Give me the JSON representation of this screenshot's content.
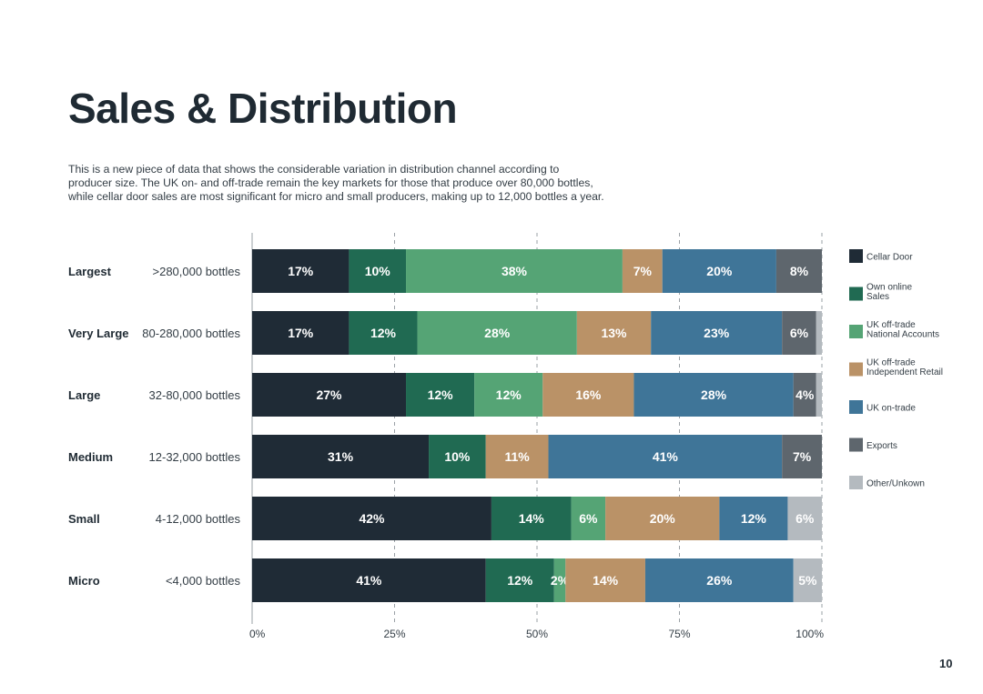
{
  "page": {
    "title": "Sales & Distribution",
    "intro_lines": [
      "This is a new piece of data that shows the considerable variation in distribution channel according to",
      "producer size. The UK on- and off-trade remain the key markets for those that produce over 80,000 bottles,",
      "while cellar door sales are most significant for micro and small producers, making up to 12,000 bottles a year."
    ],
    "page_number": "10"
  },
  "chart_data": {
    "type": "bar",
    "orientation": "horizontal",
    "stacked": true,
    "percent_stacked": true,
    "x_ticks": [
      "0%",
      "25%",
      "50%",
      "75%",
      "100%"
    ],
    "xlim": [
      0,
      100
    ],
    "grid": "vertical dashed at 25% intervals",
    "legend_position": "right",
    "categories": [
      {
        "name": "Largest",
        "range": ">280,000 bottles"
      },
      {
        "name": "Very Large",
        "range": "80-280,000 bottles"
      },
      {
        "name": "Large",
        "range": "32-80,000 bottles"
      },
      {
        "name": "Medium",
        "range": "12-32,000 bottles"
      },
      {
        "name": "Small",
        "range": "4-12,000 bottles"
      },
      {
        "name": "Micro",
        "range": "<4,000 bottles"
      }
    ],
    "series": [
      {
        "name": "Cellar Door",
        "legend_lines": [
          "Cellar Door"
        ],
        "color": "#1f2b36",
        "values": [
          17,
          17,
          27,
          31,
          42,
          41
        ]
      },
      {
        "name": "Own online Sales",
        "legend_lines": [
          "Own online",
          "Sales"
        ],
        "color": "#206a52",
        "values": [
          10,
          12,
          12,
          10,
          14,
          12
        ]
      },
      {
        "name": "UK off-trade National Accounts",
        "legend_lines": [
          "UK off-trade",
          "National Accounts"
        ],
        "color": "#55a475",
        "values": [
          38,
          28,
          12,
          0,
          6,
          2
        ]
      },
      {
        "name": "UK off-trade Independent Retail",
        "legend_lines": [
          "UK off-trade",
          "Independent Retail"
        ],
        "color": "#ba9267",
        "values": [
          7,
          13,
          16,
          11,
          20,
          14
        ]
      },
      {
        "name": "UK on-trade",
        "legend_lines": [
          "UK on-trade"
        ],
        "color": "#3f7598",
        "values": [
          20,
          23,
          28,
          41,
          12,
          26
        ]
      },
      {
        "name": "Exports",
        "legend_lines": [
          "Exports"
        ],
        "color": "#5e666d",
        "values": [
          8,
          6,
          4,
          7,
          0,
          0
        ]
      },
      {
        "name": "Other/Unkown",
        "legend_lines": [
          "Other/Unkown"
        ],
        "color": "#b4babf",
        "values": [
          0,
          1,
          1,
          0,
          6,
          5
        ]
      }
    ],
    "data_labels": [
      [
        "17%",
        "10%",
        "38%",
        "7%",
        "20%",
        "8%",
        ""
      ],
      [
        "17%",
        "12%",
        "28%",
        "13%",
        "23%",
        "6%",
        ""
      ],
      [
        "27%",
        "12%",
        "12%",
        "16%",
        "28%",
        "4%",
        ""
      ],
      [
        "31%",
        "10%",
        "",
        "11%",
        "41%",
        "7%",
        ""
      ],
      [
        "42%",
        "14%",
        "6%",
        "20%",
        "12%",
        "",
        "6%"
      ],
      [
        "41%",
        "12%",
        "2%",
        "14%",
        "26%",
        "",
        "5%"
      ]
    ]
  }
}
